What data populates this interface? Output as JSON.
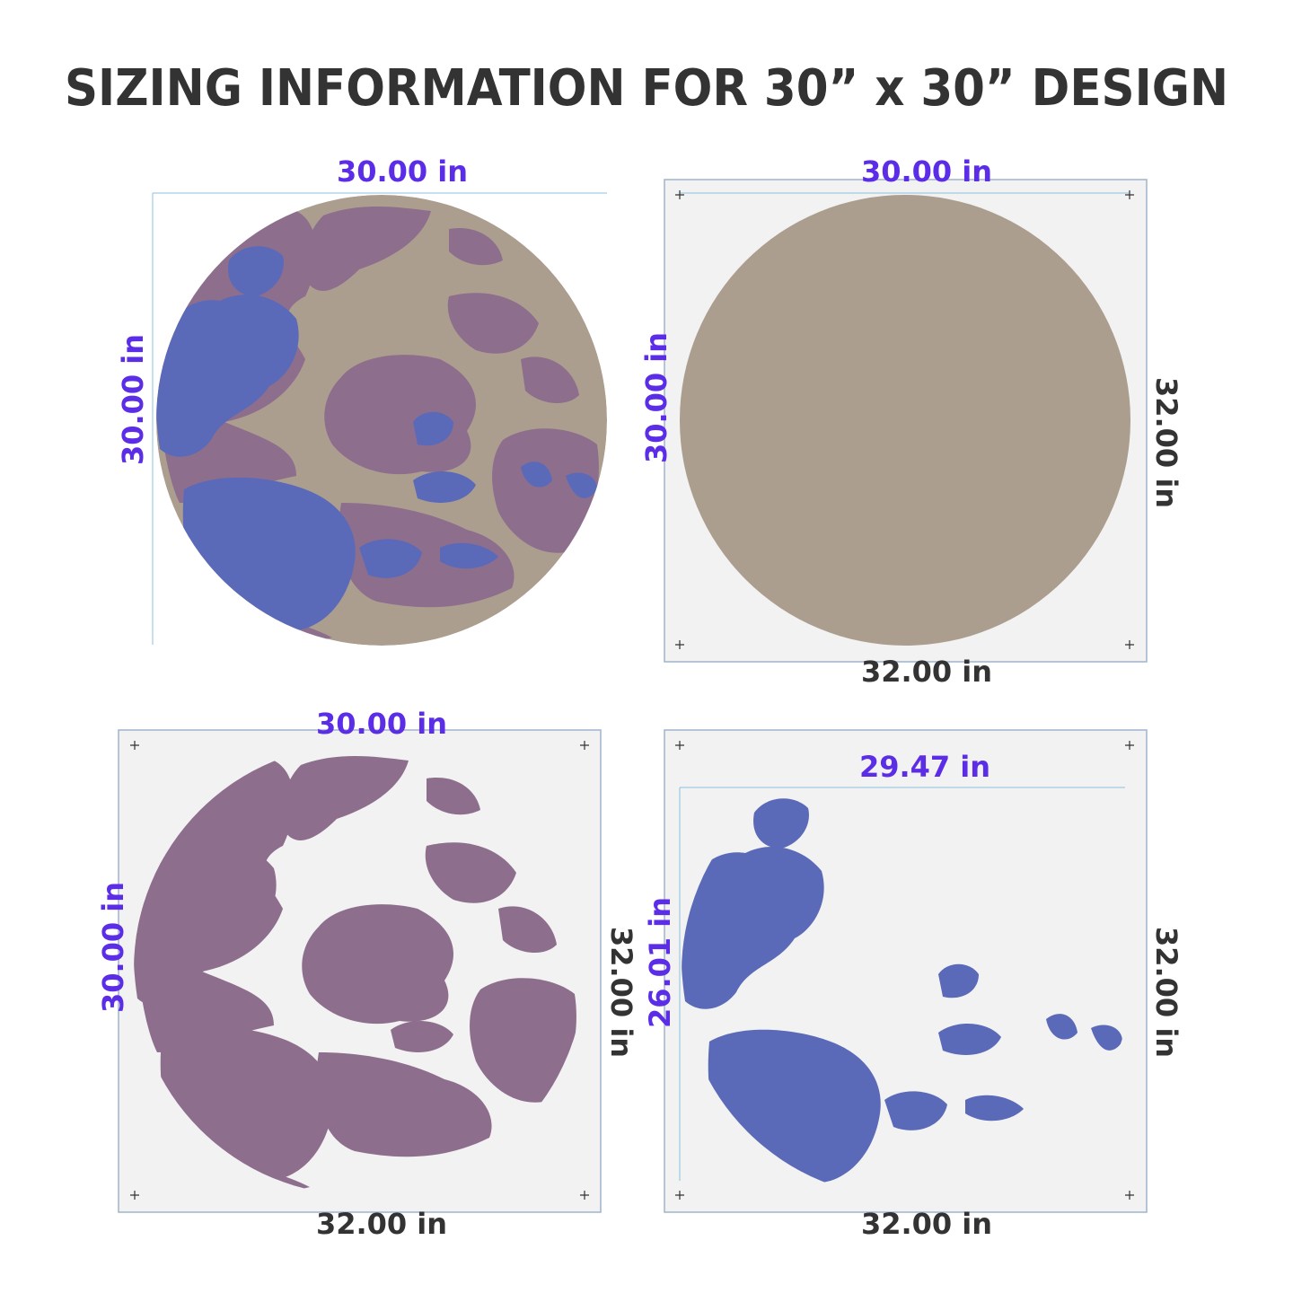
{
  "title": "SIZING INFORMATION FOR 30” x 30” DESIGN",
  "panels": [
    {
      "width_label": "30.00  in",
      "height_label": "30.00  in"
    },
    {
      "width_label": "30.00  in",
      "height_label": "30.00  in",
      "sheet_width_label": "32.00  in",
      "sheet_height_label": "32.00  in"
    },
    {
      "width_label": "30.00  in",
      "height_label": "30.00  in",
      "sheet_width_label": "32.00  in",
      "sheet_height_label": "32.00  in"
    },
    {
      "width_label": "29.47  in",
      "height_label": "26.01  in",
      "sheet_width_label": "32.00  in",
      "sheet_height_label": "32.00  in"
    }
  ]
}
